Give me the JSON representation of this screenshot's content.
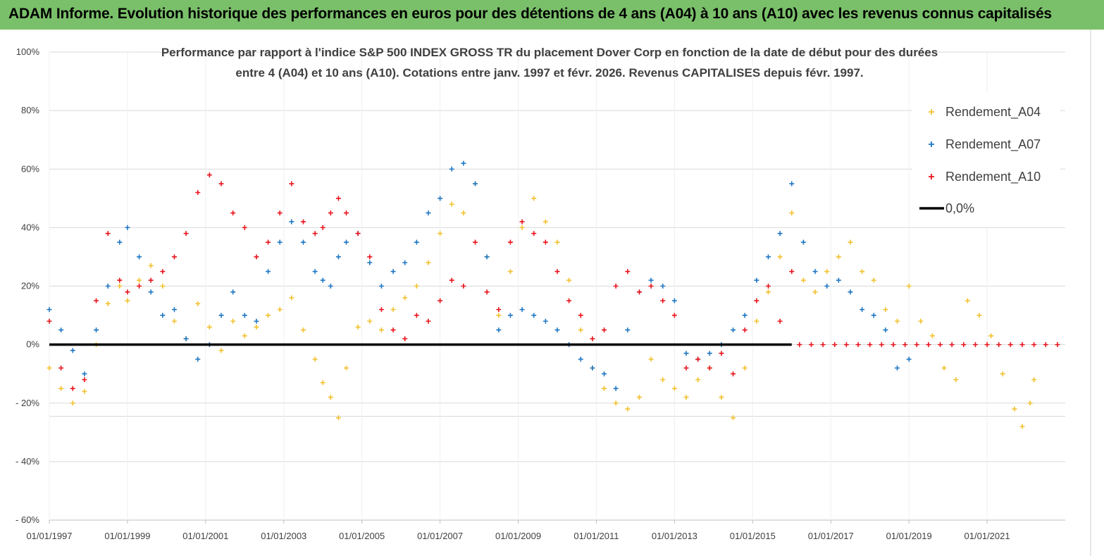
{
  "header": {
    "title": "ADAM Informe. Evolution historique des performances en euros pour des détentions de 4 ans (A04) à 10 ans (A10) avec les revenus connus capitalisés"
  },
  "chart_data": {
    "type": "scatter",
    "title_lines": [
      "Performance par rapport à l'indice S&P 500 INDEX GROSS TR  du placement Dover Corp en fonction de la date de début pour des durées",
      "entre 4 (A04) et 10 ans (A10). Cotations entre janv. 1997 et févr. 2026. Revenus CAPITALISES depuis févr. 1997."
    ],
    "y_ticks": [
      "100%",
      "80%",
      "60%",
      "40%",
      "20%",
      "0%",
      "- 20%",
      "- 40%",
      "- 60%"
    ],
    "x_ticks": [
      "01/01/1997",
      "01/01/1999",
      "01/01/2001",
      "01/01/2003",
      "01/01/2005",
      "01/01/2007",
      "01/01/2009",
      "01/01/2011",
      "01/01/2013",
      "01/01/2015",
      "01/01/2017",
      "01/01/2019",
      "01/01/2021"
    ],
    "xlim": [
      1997.0,
      2023.0
    ],
    "ylim": [
      -60,
      100
    ],
    "grid": "horizontal",
    "legend_position": "top-right",
    "colors": {
      "A04": "#f2c12e",
      "A07": "#1f77c4",
      "A10": "#e8141c",
      "zero": "#000000",
      "banner": "#7ac06a"
    },
    "series": [
      {
        "name": "Rendement_A04",
        "points": [
          [
            1997.0,
            -8
          ],
          [
            1997.3,
            -15
          ],
          [
            1997.6,
            -20
          ],
          [
            1997.9,
            -16
          ],
          [
            1998.2,
            0
          ],
          [
            1998.5,
            14
          ],
          [
            1998.8,
            20
          ],
          [
            1999.0,
            15
          ],
          [
            1999.3,
            22
          ],
          [
            1999.6,
            27
          ],
          [
            1999.9,
            20
          ],
          [
            2000.2,
            8
          ],
          [
            2000.5,
            2
          ],
          [
            2000.8,
            14
          ],
          [
            2001.1,
            6
          ],
          [
            2001.4,
            -2
          ],
          [
            2001.7,
            8
          ],
          [
            2002.0,
            3
          ],
          [
            2002.3,
            6
          ],
          [
            2002.6,
            10
          ],
          [
            2002.9,
            12
          ],
          [
            2003.2,
            16
          ],
          [
            2003.5,
            5
          ],
          [
            2003.8,
            -5
          ],
          [
            2004.0,
            -13
          ],
          [
            2004.2,
            -18
          ],
          [
            2004.4,
            -25
          ],
          [
            2004.6,
            -8
          ],
          [
            2004.9,
            6
          ],
          [
            2005.2,
            8
          ],
          [
            2005.5,
            5
          ],
          [
            2005.8,
            12
          ],
          [
            2006.1,
            16
          ],
          [
            2006.4,
            20
          ],
          [
            2006.7,
            28
          ],
          [
            2007.0,
            38
          ],
          [
            2007.3,
            48
          ],
          [
            2007.6,
            45
          ],
          [
            2007.9,
            55
          ],
          [
            2008.2,
            30
          ],
          [
            2008.5,
            10
          ],
          [
            2008.8,
            25
          ],
          [
            2009.1,
            40
          ],
          [
            2009.4,
            50
          ],
          [
            2009.7,
            42
          ],
          [
            2010.0,
            35
          ],
          [
            2010.3,
            22
          ],
          [
            2010.6,
            5
          ],
          [
            2010.9,
            -8
          ],
          [
            2011.2,
            -15
          ],
          [
            2011.5,
            -20
          ],
          [
            2011.8,
            -22
          ],
          [
            2012.1,
            -18
          ],
          [
            2012.4,
            -5
          ],
          [
            2012.7,
            -12
          ],
          [
            2013.0,
            -15
          ],
          [
            2013.3,
            -18
          ],
          [
            2013.6,
            -12
          ],
          [
            2013.9,
            -8
          ],
          [
            2014.2,
            -18
          ],
          [
            2014.5,
            -25
          ],
          [
            2014.8,
            -8
          ],
          [
            2015.1,
            8
          ],
          [
            2015.4,
            18
          ],
          [
            2015.7,
            30
          ],
          [
            2016.0,
            45
          ],
          [
            2016.3,
            22
          ],
          [
            2016.6,
            18
          ],
          [
            2016.9,
            25
          ],
          [
            2017.2,
            30
          ],
          [
            2017.5,
            35
          ],
          [
            2017.8,
            25
          ],
          [
            2018.1,
            22
          ],
          [
            2018.4,
            12
          ],
          [
            2018.7,
            8
          ],
          [
            2019.0,
            20
          ],
          [
            2019.3,
            8
          ],
          [
            2019.6,
            3
          ],
          [
            2019.9,
            -8
          ],
          [
            2020.2,
            -12
          ],
          [
            2020.5,
            15
          ],
          [
            2020.8,
            10
          ],
          [
            2021.1,
            3
          ],
          [
            2021.4,
            -10
          ],
          [
            2021.7,
            -22
          ],
          [
            2021.9,
            -28
          ],
          [
            2022.1,
            -20
          ],
          [
            2022.2,
            -12
          ]
        ]
      },
      {
        "name": "Rendement_A07",
        "points": [
          [
            1997.0,
            12
          ],
          [
            1997.3,
            5
          ],
          [
            1997.6,
            -2
          ],
          [
            1997.9,
            -10
          ],
          [
            1998.2,
            5
          ],
          [
            1998.5,
            20
          ],
          [
            1998.8,
            35
          ],
          [
            1999.0,
            40
          ],
          [
            1999.3,
            30
          ],
          [
            1999.6,
            18
          ],
          [
            1999.9,
            10
          ],
          [
            2000.2,
            12
          ],
          [
            2000.5,
            2
          ],
          [
            2000.8,
            -5
          ],
          [
            2001.1,
            0
          ],
          [
            2001.4,
            10
          ],
          [
            2001.7,
            18
          ],
          [
            2002.0,
            10
          ],
          [
            2002.3,
            8
          ],
          [
            2002.6,
            25
          ],
          [
            2002.9,
            35
          ],
          [
            2003.2,
            42
          ],
          [
            2003.5,
            35
          ],
          [
            2003.8,
            25
          ],
          [
            2004.0,
            22
          ],
          [
            2004.2,
            20
          ],
          [
            2004.4,
            30
          ],
          [
            2004.6,
            35
          ],
          [
            2004.9,
            38
          ],
          [
            2005.2,
            28
          ],
          [
            2005.5,
            20
          ],
          [
            2005.8,
            25
          ],
          [
            2006.1,
            28
          ],
          [
            2006.4,
            35
          ],
          [
            2006.7,
            45
          ],
          [
            2007.0,
            50
          ],
          [
            2007.3,
            60
          ],
          [
            2007.6,
            62
          ],
          [
            2007.9,
            55
          ],
          [
            2008.2,
            30
          ],
          [
            2008.5,
            5
          ],
          [
            2008.8,
            10
          ],
          [
            2009.1,
            12
          ],
          [
            2009.4,
            10
          ],
          [
            2009.7,
            8
          ],
          [
            2010.0,
            5
          ],
          [
            2010.3,
            0
          ],
          [
            2010.6,
            -5
          ],
          [
            2010.9,
            -8
          ],
          [
            2011.2,
            -10
          ],
          [
            2011.5,
            -15
          ],
          [
            2011.8,
            5
          ],
          [
            2012.1,
            18
          ],
          [
            2012.4,
            22
          ],
          [
            2012.7,
            20
          ],
          [
            2013.0,
            15
          ],
          [
            2013.3,
            -3
          ],
          [
            2013.6,
            -5
          ],
          [
            2013.9,
            -3
          ],
          [
            2014.2,
            0
          ],
          [
            2014.5,
            5
          ],
          [
            2014.8,
            10
          ],
          [
            2015.1,
            22
          ],
          [
            2015.4,
            30
          ],
          [
            2015.7,
            38
          ],
          [
            2016.0,
            55
          ],
          [
            2016.3,
            35
          ],
          [
            2016.6,
            25
          ],
          [
            2016.9,
            20
          ],
          [
            2017.2,
            22
          ],
          [
            2017.5,
            18
          ],
          [
            2017.8,
            12
          ],
          [
            2018.1,
            10
          ],
          [
            2018.4,
            5
          ],
          [
            2018.7,
            -8
          ],
          [
            2019.0,
            -5
          ]
        ]
      },
      {
        "name": "Rendement_A10",
        "points": [
          [
            1997.0,
            8
          ],
          [
            1997.3,
            -8
          ],
          [
            1997.6,
            -15
          ],
          [
            1997.9,
            -12
          ],
          [
            1998.2,
            15
          ],
          [
            1998.5,
            38
          ],
          [
            1998.8,
            22
          ],
          [
            1999.0,
            18
          ],
          [
            1999.3,
            20
          ],
          [
            1999.6,
            22
          ],
          [
            1999.9,
            25
          ],
          [
            2000.2,
            30
          ],
          [
            2000.5,
            38
          ],
          [
            2000.8,
            52
          ],
          [
            2001.1,
            58
          ],
          [
            2001.4,
            55
          ],
          [
            2001.7,
            45
          ],
          [
            2002.0,
            40
          ],
          [
            2002.3,
            30
          ],
          [
            2002.6,
            35
          ],
          [
            2002.9,
            45
          ],
          [
            2003.2,
            55
          ],
          [
            2003.5,
            42
          ],
          [
            2003.8,
            38
          ],
          [
            2004.0,
            40
          ],
          [
            2004.2,
            45
          ],
          [
            2004.4,
            50
          ],
          [
            2004.6,
            45
          ],
          [
            2004.9,
            38
          ],
          [
            2005.2,
            30
          ],
          [
            2005.5,
            12
          ],
          [
            2005.8,
            5
          ],
          [
            2006.1,
            2
          ],
          [
            2006.4,
            10
          ],
          [
            2006.7,
            8
          ],
          [
            2007.0,
            15
          ],
          [
            2007.3,
            22
          ],
          [
            2007.6,
            20
          ],
          [
            2007.9,
            35
          ],
          [
            2008.2,
            18
          ],
          [
            2008.5,
            12
          ],
          [
            2008.8,
            35
          ],
          [
            2009.1,
            42
          ],
          [
            2009.4,
            38
          ],
          [
            2009.7,
            35
          ],
          [
            2010.0,
            25
          ],
          [
            2010.3,
            15
          ],
          [
            2010.6,
            10
          ],
          [
            2010.9,
            2
          ],
          [
            2011.2,
            5
          ],
          [
            2011.5,
            20
          ],
          [
            2011.8,
            25
          ],
          [
            2012.1,
            18
          ],
          [
            2012.4,
            20
          ],
          [
            2012.7,
            15
          ],
          [
            2013.0,
            10
          ],
          [
            2013.3,
            -8
          ],
          [
            2013.6,
            -5
          ],
          [
            2013.9,
            -8
          ],
          [
            2014.2,
            -3
          ],
          [
            2014.5,
            -10
          ],
          [
            2014.8,
            5
          ],
          [
            2015.1,
            15
          ],
          [
            2015.4,
            20
          ],
          [
            2015.7,
            8
          ],
          [
            2016.0,
            25
          ],
          [
            2016.2,
            0
          ],
          [
            2016.5,
            0
          ],
          [
            2016.8,
            0
          ],
          [
            2017.1,
            0
          ],
          [
            2017.4,
            0
          ],
          [
            2017.7,
            0
          ],
          [
            2018.0,
            0
          ],
          [
            2018.3,
            0
          ],
          [
            2018.6,
            0
          ],
          [
            2018.9,
            0
          ],
          [
            2019.2,
            0
          ],
          [
            2019.5,
            0
          ],
          [
            2019.8,
            0
          ],
          [
            2020.1,
            0
          ],
          [
            2020.4,
            0
          ],
          [
            2020.7,
            0
          ],
          [
            2021.0,
            0
          ],
          [
            2021.3,
            0
          ],
          [
            2021.6,
            0
          ],
          [
            2021.9,
            0
          ],
          [
            2022.2,
            0
          ],
          [
            2022.5,
            0
          ],
          [
            2022.8,
            0
          ]
        ]
      },
      {
        "name": "0,0%",
        "type": "line",
        "points": [
          [
            1997.0,
            0
          ],
          [
            2016.0,
            0
          ]
        ]
      }
    ]
  }
}
